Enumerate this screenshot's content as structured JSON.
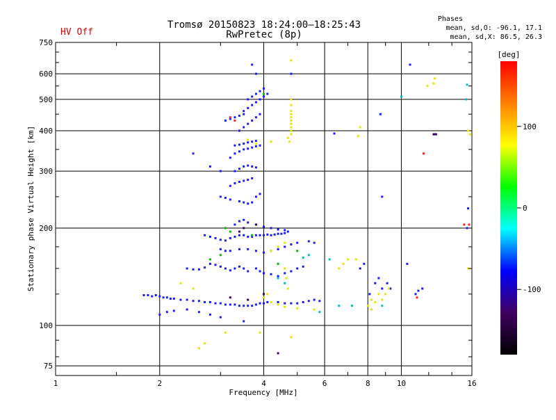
{
  "chart_data": {
    "type": "scatter",
    "title": "Tromsø 20150823 18:24:00–18:25:43",
    "subtitle": "RwPretec (8p)",
    "status_text": "HV Off",
    "phase_box": {
      "heading": "Phases",
      "line_o": "mean, sd,O: -96.1, 17.1",
      "line_x": "mean, sd,X:  86.5, 26.3"
    },
    "xlabel": "Frequency [MHz]",
    "ylabel": "Stationary phase Virtual Height [km]",
    "x_scale": "log",
    "y_scale": "log",
    "xlim": [
      1,
      16
    ],
    "ylim": [
      70,
      750
    ],
    "x_ticks": [
      1,
      2,
      4,
      6,
      8,
      10,
      16
    ],
    "y_ticks": [
      75,
      100,
      200,
      300,
      400,
      500,
      600,
      750
    ],
    "grid": true,
    "colorbar": {
      "label": "[deg]",
      "range": [
        -180,
        180
      ],
      "ticks": [
        100,
        0,
        -100
      ],
      "colors": [
        "#000000",
        "#400060",
        "#0000ff",
        "#00ffff",
        "#00ff00",
        "#ffff00",
        "#ff8000",
        "#ff0000"
      ]
    },
    "series": [
      {
        "mode": "O",
        "color": "#1a1aff",
        "points": [
          [
            1.8,
            124
          ],
          [
            1.85,
            124
          ],
          [
            1.9,
            123
          ],
          [
            1.95,
            124
          ],
          [
            2.0,
            123
          ],
          [
            2.05,
            122
          ],
          [
            2.1,
            122
          ],
          [
            2.15,
            121
          ],
          [
            2.2,
            121
          ],
          [
            2.3,
            120
          ],
          [
            2.4,
            120
          ],
          [
            2.5,
            119
          ],
          [
            2.6,
            119
          ],
          [
            2.7,
            118
          ],
          [
            2.8,
            118
          ],
          [
            2.9,
            117
          ],
          [
            3.0,
            117
          ],
          [
            3.1,
            116
          ],
          [
            3.2,
            116
          ],
          [
            3.3,
            116
          ],
          [
            3.4,
            115
          ],
          [
            3.5,
            115
          ],
          [
            3.6,
            115
          ],
          [
            3.7,
            115
          ],
          [
            3.8,
            116
          ],
          [
            3.9,
            117
          ],
          [
            4.0,
            117
          ],
          [
            4.1,
            118
          ],
          [
            4.2,
            118
          ],
          [
            4.4,
            118
          ],
          [
            4.6,
            117
          ],
          [
            4.8,
            117
          ],
          [
            5.0,
            117
          ],
          [
            5.2,
            118
          ],
          [
            5.4,
            119
          ],
          [
            5.6,
            120
          ],
          [
            5.8,
            119
          ],
          [
            2.0,
            108
          ],
          [
            2.1,
            110
          ],
          [
            2.2,
            111
          ],
          [
            2.4,
            112
          ],
          [
            2.6,
            110
          ],
          [
            2.8,
            108
          ],
          [
            3.0,
            106
          ],
          [
            3.5,
            103
          ],
          [
            2.4,
            150
          ],
          [
            2.5,
            149
          ],
          [
            2.6,
            149
          ],
          [
            2.7,
            151
          ],
          [
            2.8,
            155
          ],
          [
            2.9,
            154
          ],
          [
            3.0,
            152
          ],
          [
            3.1,
            150
          ],
          [
            3.2,
            148
          ],
          [
            3.3,
            150
          ],
          [
            3.4,
            152
          ],
          [
            3.5,
            150
          ],
          [
            3.6,
            147
          ],
          [
            3.8,
            150
          ],
          [
            3.9,
            147
          ],
          [
            4.0,
            145
          ],
          [
            4.2,
            144
          ],
          [
            4.4,
            142
          ],
          [
            4.6,
            145
          ],
          [
            4.8,
            147
          ],
          [
            5.0,
            150
          ],
          [
            5.2,
            152
          ],
          [
            2.7,
            190
          ],
          [
            2.8,
            188
          ],
          [
            2.9,
            186
          ],
          [
            3.0,
            184
          ],
          [
            3.1,
            183
          ],
          [
            3.2,
            186
          ],
          [
            3.3,
            188
          ],
          [
            3.4,
            190
          ],
          [
            3.5,
            190
          ],
          [
            3.6,
            188
          ],
          [
            3.7,
            188
          ],
          [
            3.8,
            190
          ],
          [
            3.9,
            190
          ],
          [
            4.0,
            190
          ],
          [
            4.1,
            191
          ],
          [
            4.2,
            190
          ],
          [
            4.3,
            191
          ],
          [
            4.4,
            192
          ],
          [
            4.5,
            192
          ],
          [
            4.6,
            193
          ],
          [
            4.7,
            195
          ],
          [
            3.0,
            172
          ],
          [
            3.1,
            170
          ],
          [
            3.2,
            170
          ],
          [
            3.4,
            172
          ],
          [
            3.6,
            172
          ],
          [
            3.8,
            170
          ],
          [
            4.0,
            168
          ],
          [
            4.2,
            170
          ],
          [
            4.4,
            172
          ],
          [
            4.6,
            175
          ],
          [
            4.8,
            178
          ],
          [
            5.0,
            180
          ],
          [
            5.4,
            182
          ],
          [
            5.6,
            180
          ],
          [
            3.3,
            205
          ],
          [
            3.4,
            210
          ],
          [
            3.5,
            212
          ],
          [
            3.6,
            208
          ],
          [
            3.8,
            205
          ],
          [
            4.0,
            202
          ],
          [
            4.2,
            200
          ],
          [
            4.4,
            198
          ],
          [
            4.6,
            197
          ],
          [
            3.0,
            250
          ],
          [
            3.1,
            248
          ],
          [
            3.2,
            245
          ],
          [
            3.4,
            242
          ],
          [
            3.5,
            240
          ],
          [
            3.6,
            238
          ],
          [
            3.7,
            240
          ],
          [
            3.8,
            250
          ],
          [
            3.9,
            255
          ],
          [
            3.2,
            270
          ],
          [
            3.3,
            275
          ],
          [
            3.4,
            278
          ],
          [
            3.5,
            280
          ],
          [
            3.6,
            282
          ],
          [
            3.7,
            285
          ],
          [
            3.3,
            300
          ],
          [
            3.4,
            305
          ],
          [
            3.5,
            310
          ],
          [
            3.6,
            312
          ],
          [
            3.7,
            310
          ],
          [
            3.8,
            308
          ],
          [
            3.2,
            330
          ],
          [
            3.3,
            340
          ],
          [
            3.4,
            345
          ],
          [
            3.5,
            350
          ],
          [
            3.6,
            352
          ],
          [
            3.7,
            355
          ],
          [
            3.8,
            358
          ],
          [
            3.9,
            360
          ],
          [
            3.3,
            360
          ],
          [
            3.4,
            362
          ],
          [
            3.5,
            365
          ],
          [
            3.6,
            368
          ],
          [
            3.7,
            370
          ],
          [
            3.8,
            372
          ],
          [
            3.4,
            400
          ],
          [
            3.5,
            410
          ],
          [
            3.6,
            420
          ],
          [
            3.7,
            430
          ],
          [
            3.8,
            440
          ],
          [
            3.9,
            450
          ],
          [
            3.5,
            460
          ],
          [
            3.6,
            470
          ],
          [
            3.7,
            480
          ],
          [
            3.8,
            490
          ],
          [
            3.9,
            500
          ],
          [
            4.0,
            510
          ],
          [
            4.1,
            520
          ],
          [
            3.1,
            430
          ],
          [
            3.2,
            435
          ],
          [
            3.3,
            440
          ],
          [
            3.4,
            445
          ],
          [
            3.5,
            450
          ],
          [
            3.6,
            500
          ],
          [
            3.7,
            510
          ],
          [
            3.8,
            520
          ],
          [
            3.9,
            530
          ],
          [
            4.0,
            540
          ],
          [
            3.7,
            640
          ],
          [
            3.8,
            600
          ],
          [
            4.8,
            600
          ],
          [
            2.5,
            340
          ],
          [
            2.8,
            310
          ],
          [
            3.0,
            300
          ],
          [
            6.4,
            392
          ],
          [
            7.6,
            150
          ],
          [
            7.8,
            155
          ],
          [
            8.1,
            125
          ],
          [
            8.4,
            135
          ],
          [
            8.6,
            140
          ],
          [
            8.8,
            130
          ],
          [
            9.1,
            135
          ],
          [
            9.3,
            130
          ],
          [
            8.7,
            450
          ],
          [
            8.8,
            250
          ],
          [
            10.6,
            640
          ],
          [
            11.0,
            125
          ],
          [
            11.2,
            128
          ],
          [
            11.5,
            130
          ],
          [
            10.4,
            155
          ],
          [
            15.5,
            200
          ],
          [
            15.6,
            230
          ],
          [
            12.5,
            390
          ]
        ]
      },
      {
        "mode": "X",
        "color": "#e6e600",
        "points": [
          [
            4.2,
            170
          ],
          [
            4.4,
            175
          ],
          [
            4.6,
            180
          ],
          [
            4.8,
            390
          ],
          [
            4.8,
            400
          ],
          [
            4.8,
            410
          ],
          [
            4.8,
            420
          ],
          [
            4.8,
            430
          ],
          [
            4.8,
            440
          ],
          [
            4.8,
            450
          ],
          [
            4.8,
            460
          ],
          [
            4.8,
            480
          ],
          [
            4.8,
            500
          ],
          [
            4.75,
            370
          ],
          [
            4.7,
            380
          ],
          [
            4.6,
            150
          ],
          [
            4.65,
            140
          ],
          [
            4.7,
            130
          ],
          [
            4.0,
            122
          ],
          [
            4.1,
            125
          ],
          [
            4.2,
            118
          ],
          [
            4.4,
            116
          ],
          [
            4.6,
            114
          ],
          [
            5.0,
            113
          ],
          [
            5.6,
            112
          ],
          [
            6.6,
            150
          ],
          [
            6.8,
            155
          ],
          [
            7.0,
            160
          ],
          [
            7.4,
            160
          ],
          [
            8.2,
            120
          ],
          [
            8.4,
            118
          ],
          [
            8.6,
            125
          ],
          [
            8.8,
            120
          ],
          [
            9.0,
            125
          ],
          [
            9.2,
            130
          ],
          [
            8.0,
            115
          ],
          [
            8.2,
            112
          ],
          [
            7.6,
            410
          ],
          [
            7.5,
            385
          ],
          [
            2.6,
            85
          ],
          [
            2.7,
            88
          ],
          [
            3.1,
            95
          ],
          [
            3.9,
            95
          ],
          [
            4.8,
            92
          ],
          [
            4.8,
            660
          ],
          [
            4.2,
            370
          ],
          [
            3.6,
            375
          ],
          [
            3.8,
            365
          ],
          [
            2.5,
            130
          ],
          [
            2.3,
            135
          ],
          [
            12.5,
            580
          ],
          [
            12.4,
            560
          ],
          [
            11.9,
            550
          ],
          [
            15.6,
            400
          ],
          [
            15.8,
            390
          ],
          [
            15.6,
            150
          ]
        ]
      },
      {
        "mode": "other",
        "color": "#ff2020",
        "points": [
          [
            3.2,
            440
          ],
          [
            3.3,
            430
          ],
          [
            11.6,
            340
          ],
          [
            15.7,
            205
          ],
          [
            15.2,
            205
          ],
          [
            11.1,
            122
          ]
        ]
      },
      {
        "mode": "other",
        "color": "#00c0c0",
        "points": [
          [
            4.4,
            140
          ],
          [
            4.6,
            135
          ],
          [
            5.2,
            162
          ],
          [
            5.4,
            165
          ],
          [
            6.2,
            160
          ],
          [
            7.2,
            115
          ],
          [
            8.8,
            115
          ],
          [
            10.0,
            510
          ],
          [
            15.5,
            555
          ],
          [
            15.4,
            500
          ],
          [
            6.6,
            115
          ],
          [
            5.8,
            110
          ]
        ]
      },
      {
        "mode": "other",
        "color": "#00c000",
        "points": [
          [
            3.1,
            200
          ],
          [
            3.2,
            195
          ],
          [
            3.7,
            190
          ],
          [
            4.0,
            520
          ],
          [
            2.8,
            160
          ],
          [
            3.0,
            165
          ],
          [
            5.0,
            170
          ],
          [
            4.4,
            155
          ]
        ]
      },
      {
        "mode": "other",
        "color": "#400060",
        "points": [
          [
            3.4,
            195
          ],
          [
            3.5,
            200
          ],
          [
            3.8,
            205
          ],
          [
            3.6,
            120
          ],
          [
            4.0,
            125
          ],
          [
            3.2,
            122
          ],
          [
            4.4,
            82
          ],
          [
            12.6,
            390
          ],
          [
            12.4,
            390
          ]
        ]
      }
    ]
  }
}
